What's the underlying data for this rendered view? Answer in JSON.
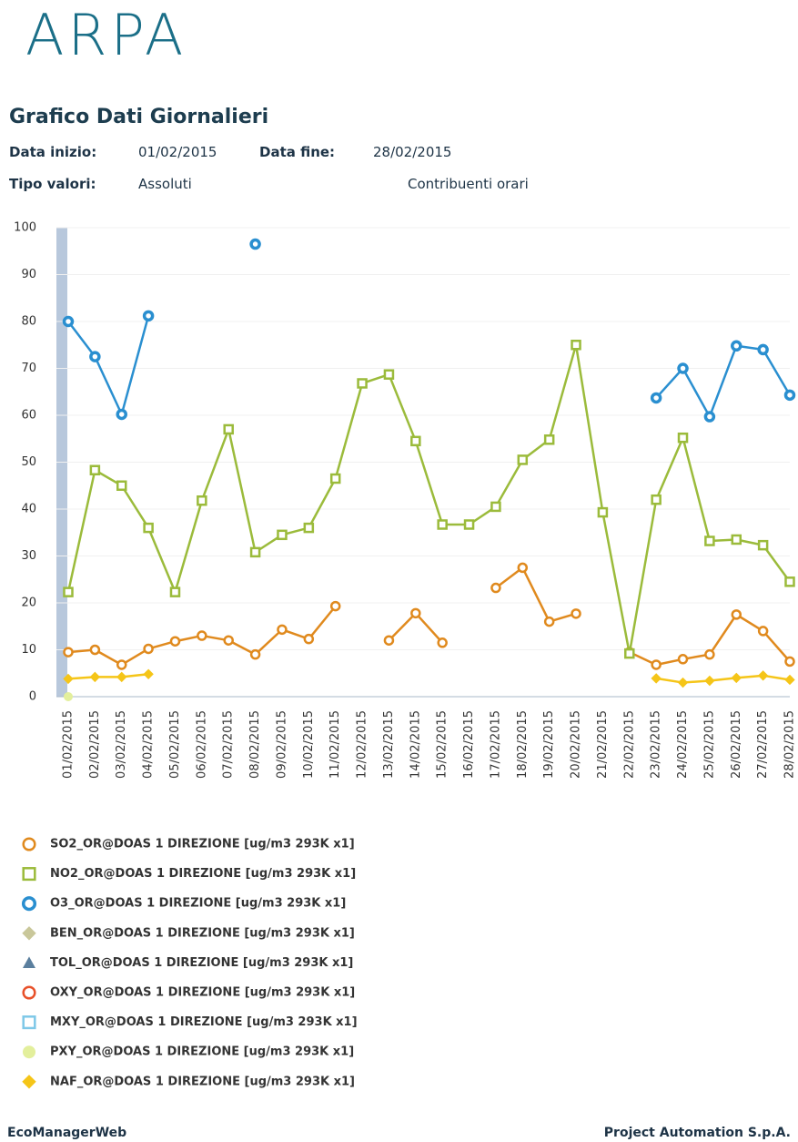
{
  "header": {
    "logo": "ARPA",
    "title": "Grafico Dati Giornalieri",
    "start_label": "Data inizio:",
    "start_value": "01/02/2015",
    "end_label": "Data fine:",
    "end_value": "28/02/2015",
    "type_label": "Tipo valori:",
    "type_value": "Assoluti",
    "note": "Contribuenti orari"
  },
  "chart_data": {
    "type": "line",
    "categories": [
      "01/02/2015",
      "02/02/2015",
      "03/02/2015",
      "04/02/2015",
      "05/02/2015",
      "06/02/2015",
      "07/02/2015",
      "08/02/2015",
      "09/02/2015",
      "10/02/2015",
      "11/02/2015",
      "12/02/2015",
      "13/02/2015",
      "14/02/2015",
      "15/02/2015",
      "16/02/2015",
      "17/02/2015",
      "18/02/2015",
      "19/02/2015",
      "20/02/2015",
      "21/02/2015",
      "22/02/2015",
      "23/02/2015",
      "24/02/2015",
      "25/02/2015",
      "26/02/2015",
      "27/02/2015",
      "28/02/2015"
    ],
    "ylim": [
      0,
      100
    ],
    "yticks": [
      0,
      10,
      20,
      30,
      40,
      50,
      60,
      70,
      80,
      90,
      100
    ],
    "grid": true,
    "series": [
      {
        "name": "SO2_OR@DOAS 1 DIREZIONE [ug/m3 293K x1]",
        "color": "#e08a1e",
        "marker": "circle",
        "values": [
          9.5,
          10,
          6.8,
          10.2,
          11.8,
          13,
          12,
          9,
          14.3,
          12.3,
          19.3,
          null,
          12,
          17.8,
          11.5,
          null,
          23.2,
          27.5,
          16,
          17.7,
          null,
          9.5,
          6.8,
          8,
          9,
          17.5,
          14,
          7.5
        ]
      },
      {
        "name": "NO2_OR@DOAS 1 DIREZIONE [ug/m3 293K x1]",
        "color": "#9bbb3b",
        "marker": "square",
        "values": [
          22.3,
          48.3,
          45,
          36,
          22.3,
          41.8,
          57,
          30.8,
          34.5,
          36,
          46.5,
          66.8,
          68.7,
          54.5,
          36.7,
          36.7,
          40.5,
          50.5,
          54.8,
          75,
          39.3,
          9.2,
          42,
          55.2,
          33.2,
          33.5,
          32.3,
          24.5
        ]
      },
      {
        "name": "O3_OR@DOAS 1 DIREZIONE [ug/m3 293K x1]",
        "color": "#2a8fd0",
        "marker": "dot",
        "values": [
          80,
          72.5,
          60.2,
          81.2,
          null,
          null,
          null,
          96.5,
          null,
          null,
          null,
          null,
          null,
          null,
          null,
          null,
          null,
          null,
          null,
          null,
          null,
          null,
          63.7,
          70,
          59.7,
          74.8,
          74,
          64.3
        ]
      },
      {
        "name": "BEN_OR@DOAS 1 DIREZIONE [ug/m3 293K x1]",
        "color": "#c9c79a",
        "marker": "diamond",
        "values": [
          null,
          null,
          null,
          null,
          null,
          null,
          null,
          null,
          null,
          null,
          null,
          null,
          null,
          null,
          null,
          null,
          null,
          null,
          null,
          null,
          null,
          null,
          null,
          null,
          null,
          null,
          null,
          null
        ]
      },
      {
        "name": "TOL_OR@DOAS 1 DIREZIONE [ug/m3 293K x1]",
        "color": "#5b7f9e",
        "marker": "triangle",
        "values": [
          null,
          null,
          null,
          null,
          null,
          null,
          null,
          null,
          null,
          null,
          null,
          null,
          null,
          null,
          null,
          null,
          null,
          null,
          null,
          null,
          null,
          null,
          null,
          null,
          null,
          null,
          null,
          null
        ]
      },
      {
        "name": "OXY_OR@DOAS 1 DIREZIONE [ug/m3 293K x1]",
        "color": "#e8512a",
        "marker": "circle",
        "values": [
          null,
          null,
          null,
          null,
          null,
          null,
          null,
          null,
          null,
          null,
          null,
          null,
          null,
          null,
          null,
          null,
          null,
          null,
          null,
          null,
          null,
          null,
          null,
          null,
          null,
          null,
          null,
          null
        ]
      },
      {
        "name": "MXY_OR@DOAS 1 DIREZIONE [ug/m3 293K x1]",
        "color": "#7ec8e8",
        "marker": "square",
        "values": [
          null,
          null,
          null,
          null,
          null,
          null,
          null,
          null,
          null,
          null,
          null,
          null,
          null,
          null,
          null,
          null,
          null,
          null,
          null,
          null,
          null,
          null,
          null,
          null,
          null,
          null,
          null,
          null
        ]
      },
      {
        "name": "PXY_OR@DOAS 1 DIREZIONE [ug/m3 293K x1]",
        "color": "#e3ef9c",
        "marker": "disc",
        "values": [
          0,
          null,
          null,
          null,
          null,
          null,
          null,
          null,
          null,
          null,
          null,
          null,
          null,
          null,
          null,
          null,
          null,
          null,
          null,
          null,
          null,
          null,
          null,
          null,
          null,
          null,
          null,
          null
        ]
      },
      {
        "name": "NAF_OR@DOAS 1 DIREZIONE [ug/m3 293K x1]",
        "color": "#f5c518",
        "marker": "diamond",
        "values": [
          3.8,
          4.2,
          4.2,
          4.8,
          null,
          null,
          null,
          null,
          null,
          null,
          null,
          null,
          null,
          null,
          null,
          null,
          null,
          null,
          null,
          null,
          null,
          null,
          3.9,
          3,
          3.4,
          4,
          4.5,
          3.6
        ]
      }
    ]
  },
  "footer": {
    "left": "EcoManagerWeb",
    "right": "Project Automation S.p.A."
  }
}
